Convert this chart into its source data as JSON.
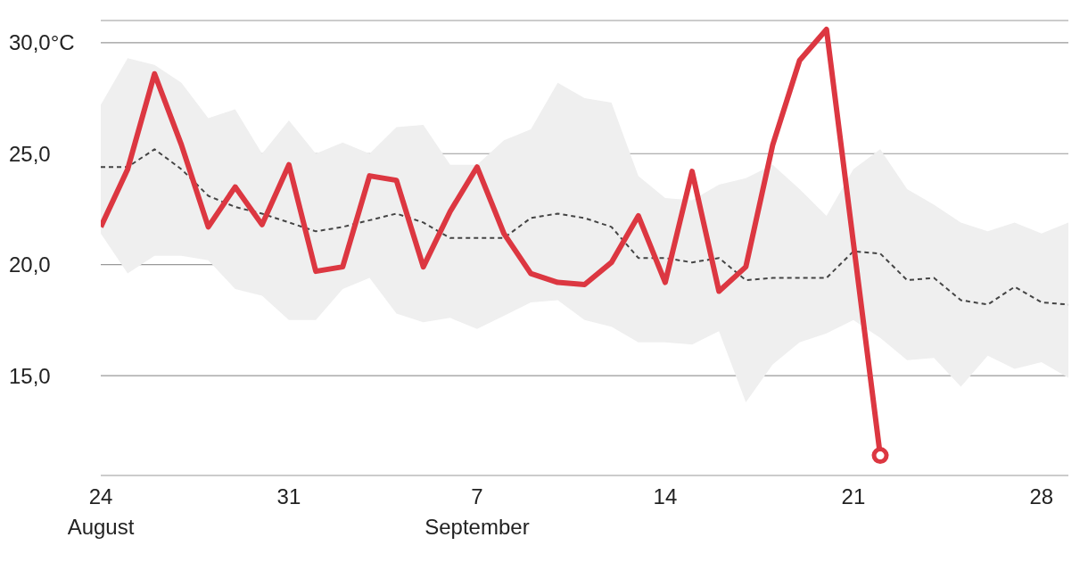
{
  "chart_data": {
    "type": "line",
    "x": [
      "--08-24",
      "--08-25",
      "--08-26",
      "--08-27",
      "--08-28",
      "--08-29",
      "--08-30",
      "--08-31",
      "--09-01",
      "--09-02",
      "--09-03",
      "--09-04",
      "--09-05",
      "--09-06",
      "--09-07",
      "--09-08",
      "--09-09",
      "--09-10",
      "--09-11",
      "--09-12",
      "--09-13",
      "--09-14",
      "--09-15",
      "--09-16",
      "--09-17",
      "--09-18",
      "--09-19",
      "--09-20",
      "--09-21",
      "--09-22",
      "--09-23",
      "--09-24",
      "--09-25",
      "--09-26",
      "--09-27",
      "--09-28",
      "--09-29"
    ],
    "series": [
      {
        "color": "#444444",
        "line_style": "dashed",
        "values": [
          24.4,
          24.4,
          25.2,
          24.3,
          23.1,
          22.6,
          22.3,
          21.9,
          21.5,
          21.7,
          22.0,
          22.3,
          21.9,
          21.2,
          21.2,
          21.2,
          22.1,
          22.3,
          22.1,
          21.7,
          20.3,
          20.3,
          20.1,
          20.3,
          19.3,
          19.4,
          19.4,
          19.4,
          20.6,
          20.5,
          19.3,
          19.4,
          18.4,
          18.2,
          19.0,
          18.3,
          18.2
        ],
        "lower": [
          21.4,
          19.6,
          20.4,
          20.4,
          20.2,
          18.9,
          18.6,
          17.5,
          17.5,
          18.9,
          19.4,
          17.8,
          17.4,
          17.6,
          17.1,
          17.7,
          18.3,
          18.4,
          17.5,
          17.2,
          16.5,
          16.5,
          16.4,
          17.0,
          13.8,
          15.5,
          16.5,
          16.9,
          17.5,
          16.7,
          15.7,
          15.8,
          14.5,
          15.9,
          15.3,
          15.6,
          14.9
        ],
        "upper": [
          27.2,
          29.3,
          29.0,
          28.2,
          26.6,
          27.0,
          25.0,
          26.5,
          25.0,
          25.5,
          25.0,
          26.2,
          26.3,
          24.5,
          24.5,
          25.6,
          26.1,
          28.2,
          27.5,
          27.3,
          24.0,
          23.0,
          22.9,
          23.6,
          23.9,
          24.5,
          23.4,
          22.2,
          24.3,
          25.2,
          23.4,
          22.7,
          21.9,
          21.5,
          21.9,
          21.4,
          21.9
        ]
      },
      {
        "color": "#dc3741",
        "line_style": "solid",
        "values": [
          21.7,
          24.3,
          28.6,
          25.4,
          21.7,
          23.5,
          21.8,
          24.5,
          19.7,
          19.9,
          24.0,
          23.8,
          19.9,
          22.4,
          24.4,
          21.4,
          19.6,
          19.2,
          19.1,
          20.1,
          22.2,
          19.2,
          24.2,
          18.8,
          19.9,
          25.4,
          29.2,
          30.6,
          21.0,
          11.4,
          null,
          null,
          null,
          null,
          null,
          null,
          null
        ]
      }
    ],
    "xlim": [
      "--08-24",
      "--09-29"
    ],
    "xticks": [
      {
        "value": "--08-24",
        "label": "24\nAugust"
      },
      {
        "value": "--08-31",
        "label": "31"
      },
      {
        "value": "--09-07",
        "label": "7\nSeptember"
      },
      {
        "value": "--09-14",
        "label": "14"
      },
      {
        "value": "--09-21",
        "label": "21"
      },
      {
        "value": "--09-28",
        "label": "28"
      }
    ],
    "ylim": [
      10.5,
      31
    ],
    "yticks": [
      {
        "value": 15,
        "label": "15,0"
      },
      {
        "value": 20,
        "label": "20,0"
      },
      {
        "value": 25,
        "label": "25,0"
      },
      {
        "value": 30,
        "label": "30,0°C"
      }
    ],
    "grid": "y",
    "legend": false
  }
}
